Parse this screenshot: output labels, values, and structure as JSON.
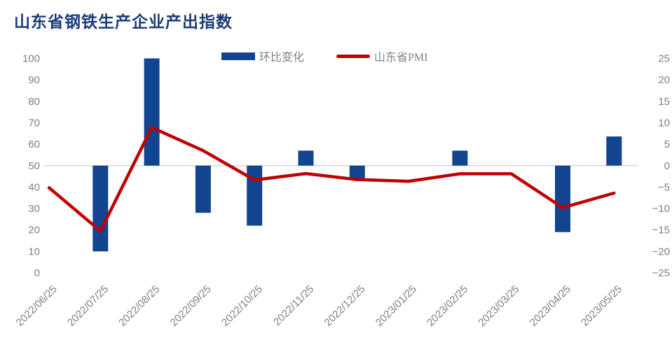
{
  "title": "山东省钢铁生产企业产出指数",
  "colors": {
    "title": "#1a3c78",
    "bar": "#11458f",
    "line": "#c00000",
    "axis_text": "#7f7f7f",
    "zero_line": "#d6d6d6",
    "background": "#ffffff"
  },
  "chart_data": {
    "type": "bar",
    "combo": "bar+line",
    "title": "山东省钢铁生产企业产出指数",
    "categories": [
      "2022/06/25",
      "2022/07/25",
      "2022/08/25",
      "2022/09/25",
      "2022/10/25",
      "2022/11/25",
      "2022/12/25",
      "2023/01/25",
      "2023/02/25",
      "2023/03/25",
      "2023/04/25",
      "2023/05/25"
    ],
    "series": [
      {
        "name": "环比变化",
        "type": "bar",
        "axis": "right",
        "color": "#11458f",
        "values": [
          null,
          -20,
          25,
          -11,
          -14,
          3.5,
          -3.3,
          null,
          3.5,
          null,
          -15.5,
          6.8
        ]
      },
      {
        "name": "山东省PMI",
        "type": "line",
        "axis": "left",
        "color": "#c00000",
        "values": [
          39.7,
          19.5,
          67.8,
          57,
          43.3,
          46.3,
          43.5,
          42.7,
          46.2,
          46.2,
          30.4,
          37.2
        ]
      }
    ],
    "left_axis": {
      "min": 0,
      "max": 100,
      "step": 10,
      "ticks": [
        100,
        90,
        80,
        70,
        60,
        50,
        40,
        30,
        20,
        10,
        0
      ]
    },
    "right_axis": {
      "min": -25,
      "max": 25,
      "step": 5,
      "ticks": [
        25,
        20,
        15,
        10,
        5,
        0,
        -5,
        -10,
        -15,
        -20,
        -25
      ]
    },
    "grid": "single-zero-line",
    "legend_position": "top-center",
    "x_labels_rotation_deg": 45
  }
}
